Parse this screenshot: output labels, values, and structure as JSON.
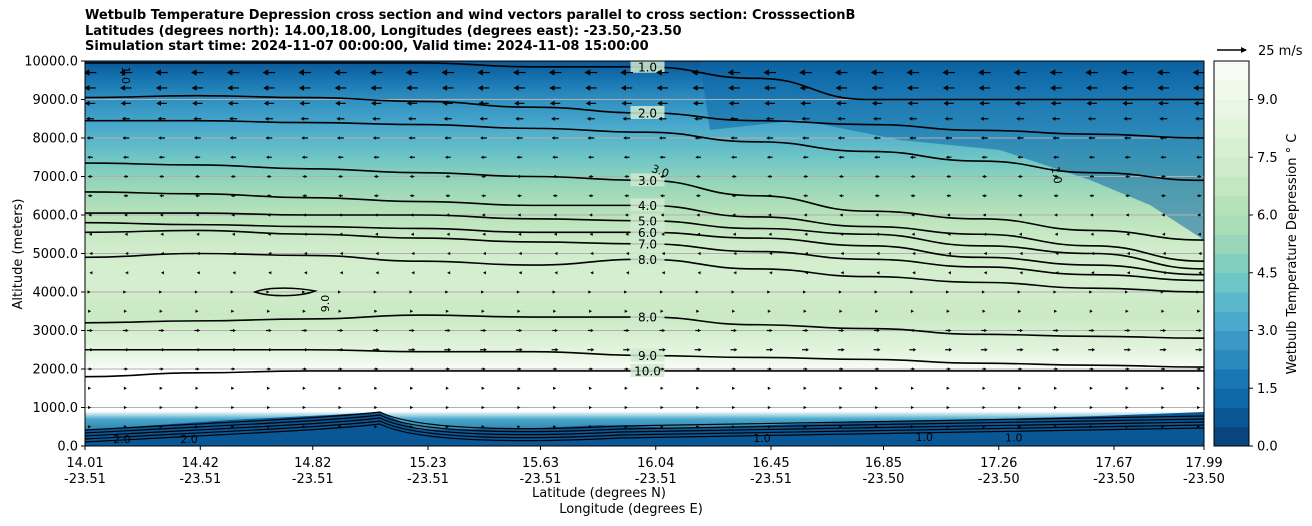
{
  "chart_data": {
    "type": "heatmap",
    "title_lines": [
      "Wetbulb Temperature Depression cross section and wind vectors parallel to cross section: CrosssectionB",
      "Latitudes (degrees north): 14.00,18.00, Longitudes (degrees east): -23.50,-23.50",
      "Simulation start time: 2024-11-07 00:00:00, Valid time: 2024-11-08 15:00:00"
    ],
    "ylabel": "Altitude (meters)",
    "xlabel_lat": "Latitude (degrees N)",
    "xlabel_lon": "Longitude (degrees E)",
    "ylim": [
      0,
      10000
    ],
    "y_ticks": [
      "0.0",
      "1000.0",
      "2000.0",
      "3000.0",
      "4000.0",
      "5000.0",
      "6000.0",
      "7000.0",
      "8000.0",
      "9000.0",
      "10000.0"
    ],
    "x_ticks": [
      {
        "lat": "14.01",
        "lon": "-23.51"
      },
      {
        "lat": "14.42",
        "lon": "-23.51"
      },
      {
        "lat": "14.82",
        "lon": "-23.51"
      },
      {
        "lat": "15.23",
        "lon": "-23.51"
      },
      {
        "lat": "15.63",
        "lon": "-23.51"
      },
      {
        "lat": "16.04",
        "lon": "-23.51"
      },
      {
        "lat": "16.45",
        "lon": "-23.51"
      },
      {
        "lat": "16.85",
        "lon": "-23.50"
      },
      {
        "lat": "17.26",
        "lon": "-23.50"
      },
      {
        "lat": "17.67",
        "lon": "-23.50"
      },
      {
        "lat": "17.99",
        "lon": "-23.50"
      }
    ],
    "lat_range": [
      14.01,
      17.99
    ],
    "colorbar": {
      "label": "Wetbulb Temperature Depression $^\\circ$C",
      "label_text": "Wetbulb Temperature Depression ° C",
      "range": [
        0,
        10
      ],
      "ticks": [
        "0.0",
        "1.5",
        "3.0",
        "4.5",
        "6.0",
        "7.5",
        "9.0"
      ],
      "colors": [
        "#08457c",
        "#0a5796",
        "#0d67a8",
        "#1978b4",
        "#2989bd",
        "#3a9ac5",
        "#4aa9cc",
        "#5bb8cb",
        "#6ec5c6",
        "#82cebf",
        "#97d6b9",
        "#a8ddb5",
        "#b5e2b8",
        "#c2e7c1",
        "#cdebca",
        "#d7efd1",
        "#e0f3da",
        "#e9f6e3",
        "#f0f9ea",
        "#f6fcf2"
      ]
    },
    "quiver_key": {
      "label": "25 m/s",
      "speed": 25
    },
    "wind": {
      "columns": 32,
      "rows": [
        {
          "alt": 9700,
          "u": -11
        },
        {
          "alt": 9300,
          "u": -10
        },
        {
          "alt": 8900,
          "u": -9
        },
        {
          "alt": 8500,
          "u": -7
        },
        {
          "alt": 8000,
          "u": -6
        },
        {
          "alt": 7500,
          "u": -5
        },
        {
          "alt": 7000,
          "u": -4
        },
        {
          "alt": 6500,
          "u": -4
        },
        {
          "alt": 6000,
          "u": -3
        },
        {
          "alt": 5500,
          "u": -2
        },
        {
          "alt": 5000,
          "u": -1
        },
        {
          "alt": 4500,
          "u": -1
        },
        {
          "alt": 4000,
          "u": 1
        },
        {
          "alt": 3500,
          "u": 2
        },
        {
          "alt": 3000,
          "u": 5
        },
        {
          "alt": 2500,
          "u": 6
        },
        {
          "alt": 2000,
          "u": 4
        },
        {
          "alt": 1500,
          "u": 2
        },
        {
          "alt": 1000,
          "u": 2
        },
        {
          "alt": 500,
          "u": 2
        }
      ]
    },
    "contours": [
      {
        "level": "1.0",
        "alts": [
          9950,
          9950,
          9950,
          9950,
          9850,
          9850,
          9550,
          9000,
          9000,
          9000,
          9000
        ]
      },
      {
        "level": "2.0",
        "alts": [
          9050,
          9100,
          9050,
          8950,
          8800,
          8650,
          8450,
          8350,
          8200,
          8100,
          8000
        ]
      },
      {
        "level": "",
        "alts": [
          8450,
          8450,
          8400,
          8350,
          8250,
          8150,
          7900,
          7650,
          7400,
          7100,
          6900
        ]
      },
      {
        "level": "3.0",
        "alts": [
          7350,
          7300,
          7200,
          7100,
          7000,
          6900,
          6500,
          6100,
          5900,
          5600,
          5350
        ]
      },
      {
        "level": "4.0",
        "alts": [
          6600,
          6550,
          6450,
          6350,
          6250,
          6250,
          5950,
          5700,
          5500,
          5200,
          4800
        ]
      },
      {
        "level": "5.0",
        "alts": [
          6050,
          6050,
          6000,
          6000,
          5900,
          5850,
          5650,
          5500,
          5200,
          5000,
          4600
        ]
      },
      {
        "level": "6.0",
        "alts": [
          5800,
          5750,
          5700,
          5650,
          5550,
          5550,
          5400,
          5200,
          4900,
          4700,
          4450
        ]
      },
      {
        "level": "7.0",
        "alts": [
          5550,
          5600,
          5500,
          5400,
          5300,
          5250,
          5050,
          4850,
          4650,
          4450,
          4300
        ]
      },
      {
        "level": "8.0",
        "alts": [
          4900,
          5000,
          4950,
          4800,
          4700,
          4850,
          4600,
          4400,
          4250,
          4100,
          4000
        ]
      },
      {
        "level": "8.0",
        "alts": [
          3200,
          3250,
          3300,
          3400,
          3350,
          3350,
          3150,
          3050,
          2900,
          2850,
          2800
        ]
      },
      {
        "level": "9.0",
        "alts": [
          2500,
          2500,
          2500,
          2450,
          2450,
          2350,
          2300,
          2250,
          2150,
          2100,
          2050
        ]
      },
      {
        "level": "10.0",
        "alts": [
          1800,
          1900,
          1950,
          1950,
          1950,
          1950,
          1950,
          1950,
          1950,
          1950,
          1950
        ]
      }
    ],
    "contour_labels_extra": [
      {
        "text": "9.0"
      },
      {
        "text": "1.0"
      },
      {
        "text": "1.0"
      },
      {
        "text": "3.0"
      },
      {
        "text": "2.0"
      },
      {
        "text": "2.0"
      },
      {
        "text": "1.0"
      },
      {
        "text": "1.0"
      },
      {
        "text": "1.0"
      }
    ]
  }
}
